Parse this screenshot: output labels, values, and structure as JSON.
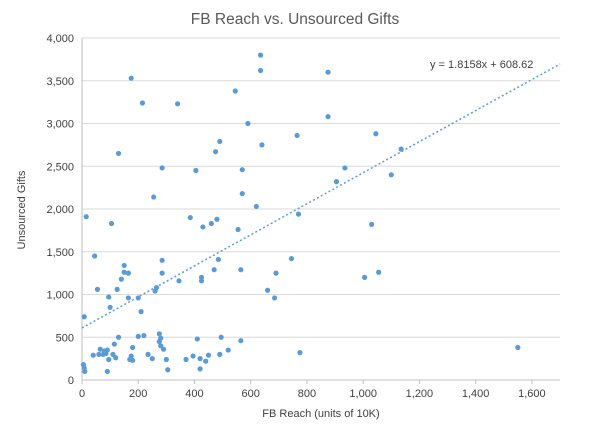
{
  "chart_data": {
    "type": "scatter",
    "title": "FB Reach vs. Unsourced Gifts",
    "xlabel": "FB Reach (units of 10K)",
    "ylabel": "Unsourced Gifts",
    "xlim": [
      0,
      1700
    ],
    "ylim": [
      0,
      4000
    ],
    "x_ticks": [
      0,
      200,
      400,
      600,
      800,
      1000,
      1200,
      1400,
      1600
    ],
    "x_tick_labels": [
      "0",
      "200",
      "400",
      "600",
      "800",
      "1,000",
      "1,200",
      "1,400",
      "1,600"
    ],
    "y_ticks": [
      0,
      500,
      1000,
      1500,
      2000,
      2500,
      3000,
      3500,
      4000
    ],
    "y_tick_labels": [
      "0",
      "500",
      "1,000",
      "1,500",
      "2,000",
      "2,500",
      "3,000",
      "3,500",
      "4,000"
    ],
    "grid": {
      "horizontal": true,
      "vertical": false
    },
    "legend": "none",
    "colors": {
      "points": "#5b9bd5",
      "trendline": "#5b9bd5",
      "grid": "#d9d9d9",
      "title": "#595959",
      "text": "#404040"
    },
    "trendline": {
      "type": "linear",
      "slope": 1.8158,
      "intercept": 608.62,
      "equation_label": "y = 1.8158x + 608.62",
      "x_range": [
        0,
        1700
      ]
    },
    "series": [
      {
        "points": [
          [
            5,
            180
          ],
          [
            8,
            140
          ],
          [
            10,
            100
          ],
          [
            8,
            740
          ],
          [
            15,
            1910
          ],
          [
            40,
            290
          ],
          [
            45,
            1450
          ],
          [
            55,
            1060
          ],
          [
            60,
            300
          ],
          [
            65,
            360
          ],
          [
            75,
            300
          ],
          [
            80,
            340
          ],
          [
            85,
            310
          ],
          [
            90,
            100
          ],
          [
            90,
            350
          ],
          [
            95,
            240
          ],
          [
            95,
            970
          ],
          [
            100,
            850
          ],
          [
            105,
            1830
          ],
          [
            110,
            300
          ],
          [
            115,
            420
          ],
          [
            120,
            260
          ],
          [
            125,
            1060
          ],
          [
            130,
            2650
          ],
          [
            130,
            500
          ],
          [
            140,
            1180
          ],
          [
            150,
            1260
          ],
          [
            150,
            1340
          ],
          [
            165,
            1250
          ],
          [
            165,
            960
          ],
          [
            170,
            240
          ],
          [
            175,
            280
          ],
          [
            175,
            3530
          ],
          [
            180,
            380
          ],
          [
            180,
            230
          ],
          [
            200,
            960
          ],
          [
            200,
            510
          ],
          [
            210,
            800
          ],
          [
            215,
            3240
          ],
          [
            220,
            520
          ],
          [
            235,
            300
          ],
          [
            250,
            250
          ],
          [
            255,
            2140
          ],
          [
            260,
            1040
          ],
          [
            265,
            1080
          ],
          [
            275,
            540
          ],
          [
            275,
            450
          ],
          [
            280,
            400
          ],
          [
            280,
            490
          ],
          [
            285,
            1400
          ],
          [
            285,
            1250
          ],
          [
            285,
            2480
          ],
          [
            290,
            360
          ],
          [
            300,
            240
          ],
          [
            305,
            120
          ],
          [
            340,
            3230
          ],
          [
            345,
            1160
          ],
          [
            370,
            240
          ],
          [
            385,
            1900
          ],
          [
            395,
            280
          ],
          [
            405,
            2450
          ],
          [
            410,
            480
          ],
          [
            420,
            130
          ],
          [
            420,
            250
          ],
          [
            425,
            1200
          ],
          [
            425,
            1160
          ],
          [
            430,
            1790
          ],
          [
            440,
            220
          ],
          [
            450,
            290
          ],
          [
            460,
            1830
          ],
          [
            470,
            1290
          ],
          [
            475,
            2670
          ],
          [
            480,
            1880
          ],
          [
            485,
            1410
          ],
          [
            490,
            2790
          ],
          [
            490,
            300
          ],
          [
            495,
            500
          ],
          [
            520,
            350
          ],
          [
            545,
            3380
          ],
          [
            555,
            1760
          ],
          [
            565,
            460
          ],
          [
            565,
            1290
          ],
          [
            570,
            2460
          ],
          [
            570,
            2180
          ],
          [
            590,
            3000
          ],
          [
            620,
            2030
          ],
          [
            635,
            3800
          ],
          [
            635,
            3620
          ],
          [
            640,
            2750
          ],
          [
            660,
            1050
          ],
          [
            685,
            960
          ],
          [
            690,
            1250
          ],
          [
            745,
            1420
          ],
          [
            765,
            2860
          ],
          [
            770,
            1940
          ],
          [
            775,
            320
          ],
          [
            875,
            3600
          ],
          [
            875,
            3080
          ],
          [
            905,
            2320
          ],
          [
            935,
            2480
          ],
          [
            1005,
            1200
          ],
          [
            1030,
            1820
          ],
          [
            1045,
            2880
          ],
          [
            1055,
            1260
          ],
          [
            1100,
            2400
          ],
          [
            1135,
            2700
          ],
          [
            1550,
            380
          ]
        ]
      }
    ]
  }
}
